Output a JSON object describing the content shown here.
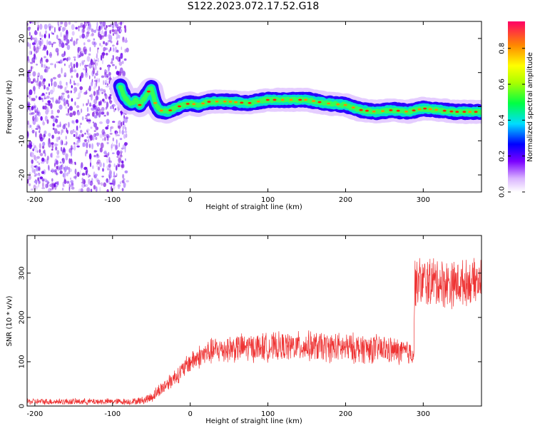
{
  "title": "S122.2023.072.17.52.G18",
  "chart_data": [
    {
      "type": "heatmap",
      "xlabel": "Height of straight line (km)",
      "ylabel": "Frequency (Hz)",
      "xlim": [
        -210,
        375
      ],
      "ylim": [
        -25,
        25
      ],
      "xticks": [
        -200,
        -100,
        0,
        100,
        200,
        300
      ],
      "yticks": [
        -20,
        -10,
        0,
        10,
        20
      ],
      "colorbar": {
        "label": "Normalized spectral amplitude",
        "range": [
          0,
          0.95
        ],
        "ticks": [
          0.0,
          0.2,
          0.4,
          0.6,
          0.8
        ]
      },
      "noise_region_x": [
        -210,
        -90
      ],
      "ridge": {
        "x": [
          -90,
          -85,
          -80,
          -75,
          -70,
          -65,
          -60,
          -55,
          -50,
          -45,
          -40,
          -30,
          -20,
          -10,
          0,
          10,
          25,
          50,
          75,
          100,
          125,
          150,
          175,
          200,
          220,
          240,
          260,
          280,
          300,
          320,
          340,
          360,
          375
        ],
        "freq": [
          6,
          3,
          1.5,
          1,
          2,
          0.5,
          2,
          4,
          5.5,
          1,
          -1,
          -1.5,
          -0.5,
          0.5,
          1,
          0.5,
          1.5,
          1.5,
          1,
          2,
          2,
          2,
          1,
          0.5,
          -1,
          -1.5,
          -1,
          -1.5,
          -0.5,
          -1,
          -1.5,
          -1.5,
          -1.5
        ]
      }
    },
    {
      "type": "line",
      "xlabel": "Height of straight line (km)",
      "ylabel": "SNR (10 * v/v)",
      "xlim": [
        -210,
        375
      ],
      "ylim": [
        0,
        385
      ],
      "xticks": [
        -200,
        -100,
        0,
        100,
        200,
        300
      ],
      "yticks": [
        0,
        100,
        200,
        300
      ],
      "color": "#ee3333",
      "series": [
        {
          "x": [
            -210,
            -160,
            -110,
            -75,
            -60,
            -50,
            -40,
            -30,
            -20,
            -10,
            0,
            10,
            20,
            30,
            50,
            75,
            100,
            125,
            150,
            175,
            200,
            225,
            250,
            270,
            288,
            289,
            300,
            320,
            340,
            360,
            375
          ],
          "center": [
            10,
            10,
            10,
            10,
            13,
            20,
            35,
            50,
            65,
            80,
            100,
            110,
            118,
            125,
            130,
            132,
            133,
            134,
            135,
            133,
            131,
            130,
            128,
            122,
            120,
            280,
            280,
            280,
            275,
            280,
            282
          ],
          "spread": [
            8,
            8,
            8,
            8,
            10,
            14,
            18,
            20,
            22,
            24,
            28,
            30,
            32,
            34,
            36,
            36,
            36,
            36,
            38,
            38,
            38,
            38,
            36,
            34,
            32,
            60,
            65,
            65,
            60,
            55,
            55
          ]
        }
      ]
    }
  ]
}
